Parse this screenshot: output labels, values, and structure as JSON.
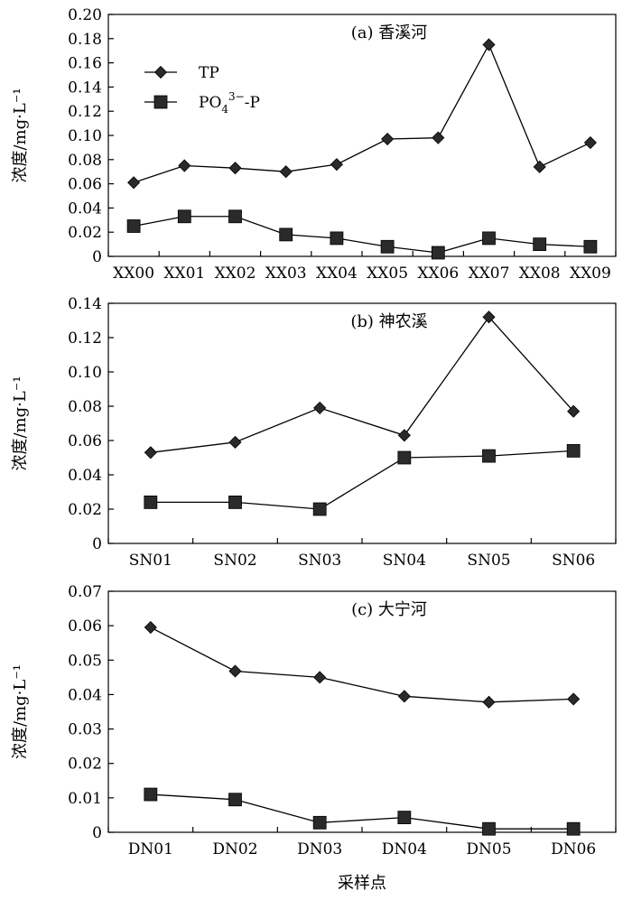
{
  "chart_data": [
    {
      "type": "line",
      "title": "(a)  香溪河",
      "ylabel": "浓度/mg·L⁻¹",
      "ylim": [
        0,
        0.2
      ],
      "yticks": [
        "0",
        "0.02",
        "0.04",
        "0.06",
        "0.08",
        "0.10",
        "0.12",
        "0.14",
        "0.16",
        "0.18",
        "0.20"
      ],
      "categories": [
        "XX00",
        "XX01",
        "XX02",
        "XX03",
        "XX04",
        "XX05",
        "XX06",
        "XX07",
        "XX08",
        "XX09"
      ],
      "series": [
        {
          "name": "TP",
          "marker": "diamond",
          "values": [
            0.061,
            0.075,
            0.073,
            0.07,
            0.076,
            0.097,
            0.098,
            0.175,
            0.074,
            0.094
          ]
        },
        {
          "name": "PO43−-P",
          "marker": "square",
          "values": [
            0.025,
            0.033,
            0.033,
            0.018,
            0.015,
            0.008,
            0.003,
            0.015,
            0.01,
            0.008
          ]
        }
      ],
      "legend": {
        "position": "top-left",
        "items": [
          {
            "marker": "diamond",
            "label": "TP"
          },
          {
            "marker": "square",
            "label_main": "PO",
            "label_sub": "4",
            "label_sup": "3−",
            "label_tail": "-P"
          }
        ]
      }
    },
    {
      "type": "line",
      "title": "(b)  神农溪",
      "ylabel": "浓度/mg·L⁻¹",
      "ylim": [
        0,
        0.14
      ],
      "yticks": [
        "0",
        "0.02",
        "0.04",
        "0.06",
        "0.08",
        "0.10",
        "0.12",
        "0.14"
      ],
      "categories": [
        "SN01",
        "SN02",
        "SN03",
        "SN04",
        "SN05",
        "SN06"
      ],
      "series": [
        {
          "name": "TP",
          "marker": "diamond",
          "values": [
            0.053,
            0.059,
            0.079,
            0.063,
            0.132,
            0.077
          ]
        },
        {
          "name": "PO43−-P",
          "marker": "square",
          "values": [
            0.024,
            0.024,
            0.02,
            0.05,
            0.051,
            0.054
          ]
        }
      ]
    },
    {
      "type": "line",
      "title": "(c)  大宁河",
      "ylabel": "浓度/mg·L⁻¹",
      "xlabel": "采样点",
      "ylim": [
        0,
        0.07
      ],
      "yticks": [
        "0",
        "0.01",
        "0.02",
        "0.03",
        "0.04",
        "0.05",
        "0.06",
        "0.07"
      ],
      "categories": [
        "DN01",
        "DN02",
        "DN03",
        "DN04",
        "DN05",
        "DN06"
      ],
      "series": [
        {
          "name": "TP",
          "marker": "diamond",
          "values": [
            0.0595,
            0.0468,
            0.045,
            0.0395,
            0.0378,
            0.0387
          ]
        },
        {
          "name": "PO43−-P",
          "marker": "square",
          "values": [
            0.011,
            0.0095,
            0.0028,
            0.0043,
            0.001,
            0.001
          ]
        }
      ]
    }
  ]
}
